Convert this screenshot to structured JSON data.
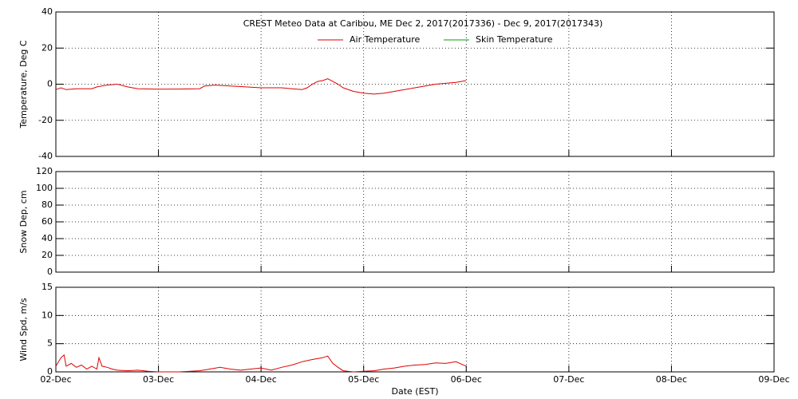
{
  "chart_data": [
    {
      "type": "line",
      "title": "CREST Meteo Data at Caribou, ME   Dec  2, 2017(2017336) - Dec  9, 2017(2017343)",
      "ylabel": "Temperature, Deg C",
      "legend": "top",
      "grid": true,
      "xlim": [
        2,
        9
      ],
      "xticks": [
        2,
        3,
        4,
        5,
        6,
        7,
        8,
        9
      ],
      "ylim": [
        -40,
        40
      ],
      "yticks": [
        -40,
        -20,
        0,
        20,
        40
      ],
      "x": [
        2.0,
        2.05,
        2.1,
        2.2,
        2.35,
        2.4,
        2.5,
        2.6,
        2.7,
        2.8,
        3.0,
        3.2,
        3.4,
        3.45,
        3.55,
        3.7,
        3.85,
        4.0,
        4.2,
        4.3,
        4.4,
        4.45,
        4.5,
        4.55,
        4.6,
        4.65,
        4.7,
        4.75,
        4.8,
        4.9,
        5.0,
        5.1,
        5.2,
        5.3,
        5.4,
        5.5,
        5.6,
        5.7,
        5.8,
        5.9,
        6.0
      ],
      "series": [
        {
          "name": "Air Temperature",
          "color": "#e00000",
          "values": [
            -3,
            -2,
            -3,
            -2.5,
            -2.5,
            -1.5,
            -0.5,
            0,
            -1.5,
            -2.5,
            -2.8,
            -2.7,
            -2.5,
            -1,
            -0.5,
            -1,
            -1.5,
            -2,
            -2,
            -2.5,
            -3,
            -2,
            0,
            1.5,
            2,
            3,
            1.5,
            0,
            -2,
            -4,
            -5,
            -5.5,
            -5,
            -4,
            -3,
            -2,
            -1,
            0,
            0.5,
            1,
            2
          ]
        },
        {
          "name": "Skin Temperature",
          "color": "#00a000"
        }
      ]
    },
    {
      "type": "line",
      "ylabel": "Snow Dep, cm",
      "grid": true,
      "xlim": [
        2,
        9
      ],
      "xticks": [
        2,
        3,
        4,
        5,
        6,
        7,
        8,
        9
      ],
      "ylim": [
        0,
        120
      ],
      "yticks": [
        0,
        20,
        40,
        60,
        80,
        100,
        120
      ]
    },
    {
      "type": "line",
      "ylabel": "Wind Spd, m/s",
      "xlabel": "Date (EST)",
      "grid": true,
      "xlim": [
        2,
        9
      ],
      "xticks": [
        {
          "value": 2,
          "label": "02-Dec"
        },
        {
          "value": 3,
          "label": "03-Dec"
        },
        {
          "value": 4,
          "label": "04-Dec"
        },
        {
          "value": 5,
          "label": "05-Dec"
        },
        {
          "value": 6,
          "label": "06-Dec"
        },
        {
          "value": 7,
          "label": "07-Dec"
        },
        {
          "value": 8,
          "label": "08-Dec"
        },
        {
          "value": 9,
          "label": "09-Dec"
        }
      ],
      "ylim": [
        0,
        15
      ],
      "yticks": [
        0,
        5,
        10,
        15
      ],
      "x": [
        2.0,
        2.05,
        2.08,
        2.1,
        2.15,
        2.2,
        2.25,
        2.3,
        2.35,
        2.4,
        2.42,
        2.45,
        2.5,
        2.55,
        2.6,
        2.7,
        2.8,
        2.9,
        3.0,
        3.2,
        3.4,
        3.5,
        3.6,
        3.7,
        3.8,
        3.9,
        4.0,
        4.1,
        4.2,
        4.3,
        4.4,
        4.5,
        4.6,
        4.65,
        4.7,
        4.75,
        4.8,
        4.9,
        5.0,
        5.1,
        5.2,
        5.3,
        5.4,
        5.5,
        5.6,
        5.7,
        5.8,
        5.9,
        6.0
      ],
      "series": [
        {
          "color": "#e00000",
          "values": [
            1,
            2.5,
            3,
            1,
            1.5,
            0.8,
            1.2,
            0.5,
            1,
            0.5,
            2.5,
            1,
            0.8,
            0.5,
            0.3,
            0.2,
            0.3,
            0.1,
            0,
            0,
            0.2,
            0.5,
            0.8,
            0.5,
            0.3,
            0.5,
            0.7,
            0.3,
            0.8,
            1.2,
            1.8,
            2.2,
            2.5,
            2.8,
            1.5,
            0.8,
            0.2,
            0,
            0.1,
            0.2,
            0.5,
            0.7,
            1,
            1.2,
            1.3,
            1.6,
            1.5,
            1.8,
            1
          ]
        }
      ]
    }
  ]
}
